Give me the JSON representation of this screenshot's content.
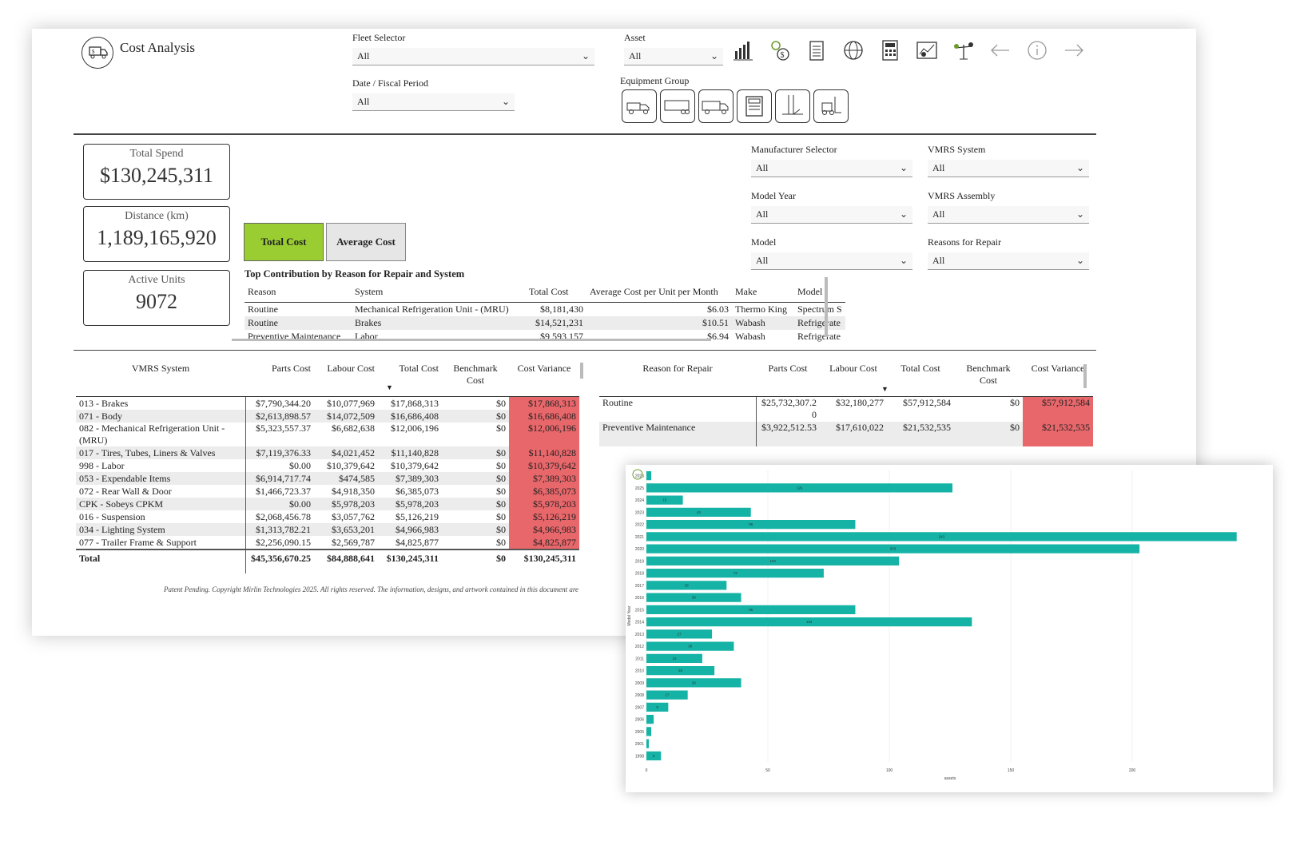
{
  "header": {
    "title": "Cost Analysis"
  },
  "filters": {
    "fleet_label": "Fleet Selector",
    "fleet_value": "All",
    "asset_label": "Asset",
    "asset_value": "All",
    "date_label": "Date / Fiscal Period",
    "date_value": "All",
    "equipment_label": "Equipment Group",
    "manufacturer_label": "Manufacturer Selector",
    "manufacturer_value": "All",
    "vmrs_system_label": "VMRS System",
    "vmrs_system_value": "All",
    "model_year_label": "Model Year",
    "model_year_value": "All",
    "vmrs_assembly_label": "VMRS Assembly",
    "vmrs_assembly_value": "All",
    "model_label": "Model",
    "model_value": "All",
    "reasons_label": "Reasons for Repair",
    "reasons_value": "All"
  },
  "toolbar_icons": [
    "bar-chart-icon",
    "gear-dollar-icon",
    "clipboard-icon",
    "globe-icon",
    "calculator-icon",
    "chart-board-icon",
    "scale-icon",
    "back-arrow-icon",
    "info-icon",
    "forward-arrow-icon"
  ],
  "equipment_icons": [
    "tractor-icon",
    "trailer-icon",
    "truck-icon",
    "reefer-icon",
    "liftgate-icon",
    "forklift-icon"
  ],
  "kpis": {
    "total_spend_label": "Total Spend",
    "total_spend_value": "$130,245,311",
    "distance_label": "Distance (km)",
    "distance_value": "1,189,165,920",
    "active_units_label": "Active Units",
    "active_units_value": "9072"
  },
  "toggle": {
    "total_label": "Total Cost",
    "avg_label": "Average Cost"
  },
  "contribution": {
    "title": "Top Contribution by Reason for Repair and System",
    "headers": [
      "Reason",
      "System",
      "Total Cost",
      "Average Cost per Unit per Month",
      "Make",
      "Model"
    ],
    "rows": [
      [
        "Routine",
        "Mechanical Refrigeration Unit - (MRU)",
        "$8,181,430",
        "$6.03",
        "Thermo King",
        "Spectrum S"
      ],
      [
        "Routine",
        "Brakes",
        "$14,521,231",
        "$10.51",
        "Wabash",
        "Refrigerate"
      ],
      [
        "Preventive Maintenance",
        "Labor",
        "$9,593,157",
        "$6.94",
        "Wabash",
        "Refrigerate"
      ]
    ]
  },
  "vmrs_table": {
    "headers": [
      "VMRS System",
      "Parts Cost",
      "Labour Cost",
      "Total Cost",
      "Benchmark Cost",
      "Cost Variance"
    ],
    "rows": [
      [
        "013 - Brakes",
        "$7,790,344.20",
        "$10,077,969",
        "$17,868,313",
        "$0",
        "$17,868,313"
      ],
      [
        "071 - Body",
        "$2,613,898.57",
        "$14,072,509",
        "$16,686,408",
        "$0",
        "$16,686,408"
      ],
      [
        "082 - Mechanical Refrigeration Unit - (MRU)",
        "$5,323,557.37",
        "$6,682,638",
        "$12,006,196",
        "$0",
        "$12,006,196"
      ],
      [
        "017 - Tires, Tubes, Liners & Valves",
        "$7,119,376.33",
        "$4,021,452",
        "$11,140,828",
        "$0",
        "$11,140,828"
      ],
      [
        "998 - Labor",
        "$0.00",
        "$10,379,642",
        "$10,379,642",
        "$0",
        "$10,379,642"
      ],
      [
        "053 - Expendable Items",
        "$6,914,717.74",
        "$474,585",
        "$7,389,303",
        "$0",
        "$7,389,303"
      ],
      [
        "072 - Rear Wall & Door",
        "$1,466,723.37",
        "$4,918,350",
        "$6,385,073",
        "$0",
        "$6,385,073"
      ],
      [
        "CPK - Sobeys CPKM",
        "$0.00",
        "$5,978,203",
        "$5,978,203",
        "$0",
        "$5,978,203"
      ],
      [
        "016 - Suspension",
        "$2,068,456.78",
        "$3,057,762",
        "$5,126,219",
        "$0",
        "$5,126,219"
      ],
      [
        "034 - Lighting System",
        "$1,313,782.21",
        "$3,653,201",
        "$4,966,983",
        "$0",
        "$4,966,983"
      ],
      [
        "077 - Trailer Frame & Support",
        "$2,256,090.15",
        "$2,569,787",
        "$4,825,877",
        "$0",
        "$4,825,877"
      ]
    ],
    "total": [
      "Total",
      "$45,356,670.25",
      "$84,888,641",
      "$130,245,311",
      "$0",
      "$130,245,311"
    ]
  },
  "reason_table": {
    "headers": [
      "Reason for Repair",
      "Parts Cost",
      "Labour Cost",
      "Total Cost",
      "Benchmark Cost",
      "Cost Variance"
    ],
    "rows": [
      [
        "Routine",
        "$25,732,307.20",
        "$32,180,277",
        "$57,912,584",
        "$0",
        "$57,912,584"
      ],
      [
        "Preventive Maintenance",
        "$3,922,512.53",
        "$17,610,022",
        "$21,532,535",
        "$0",
        "$21,532,535"
      ]
    ]
  },
  "copyright": "Patent Pending. Copyright Mirlin Technologies 2025. All rights reserved. The information, designs, and artwork contained in this document are",
  "chart_data": {
    "type": "bar",
    "orientation": "horizontal",
    "title": "",
    "xlabel": "assets",
    "ylabel": "Model Year",
    "xlim": [
      0,
      250
    ],
    "xticks": [
      0,
      50,
      100,
      150,
      200
    ],
    "grid": true,
    "color": "#15b3a6",
    "categories": [
      "2026",
      "2025",
      "2024",
      "2023",
      "2022",
      "2021",
      "2020",
      "2019",
      "2018",
      "2017",
      "2016",
      "2015",
      "2014",
      "2013",
      "2012",
      "2011",
      "2010",
      "2009",
      "2008",
      "2007",
      "2006",
      "2005",
      "2001",
      "1998"
    ],
    "values": [
      2,
      126,
      15,
      43,
      86,
      243,
      203,
      104,
      73,
      33,
      39,
      86,
      134,
      27,
      36,
      23,
      28,
      39,
      17,
      9,
      3,
      2,
      1,
      6
    ],
    "data_labels": [
      "",
      "126",
      "15",
      "43",
      "86",
      "243",
      "203",
      "104",
      "73",
      "33",
      "39",
      "86",
      "134",
      "27",
      "36",
      "23",
      "28",
      "39",
      "17",
      "9",
      "",
      "",
      "",
      "6"
    ]
  }
}
